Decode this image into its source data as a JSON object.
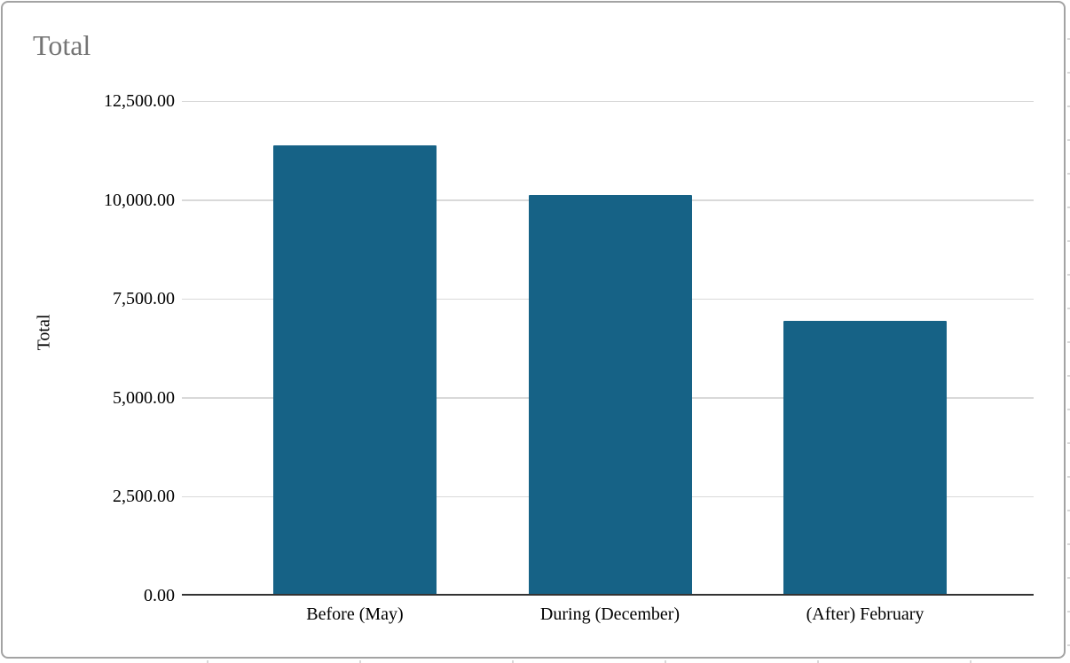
{
  "chart_data": {
    "type": "bar",
    "title": "Total",
    "xlabel": "",
    "ylabel": "Total",
    "categories": [
      "Before (May)",
      "During (December)",
      "(After) February"
    ],
    "values": [
      11380,
      10130,
      6960
    ],
    "ylim": [
      0,
      12500
    ],
    "ytick_step": 2500,
    "ytick_labels": [
      "0.00",
      "2,500.00",
      "5,000.00",
      "7,500.00",
      "10,000.00",
      "12,500.00"
    ],
    "grid": true,
    "legend": false,
    "series_count": 1
  },
  "colors": {
    "bar": "#166286",
    "gridline": "#d9d9d9",
    "axis_line": "#333333",
    "chart_title": "#757575",
    "frame_border": "#a3a3a3",
    "label_text": "#000000",
    "background": "#ffffff"
  }
}
